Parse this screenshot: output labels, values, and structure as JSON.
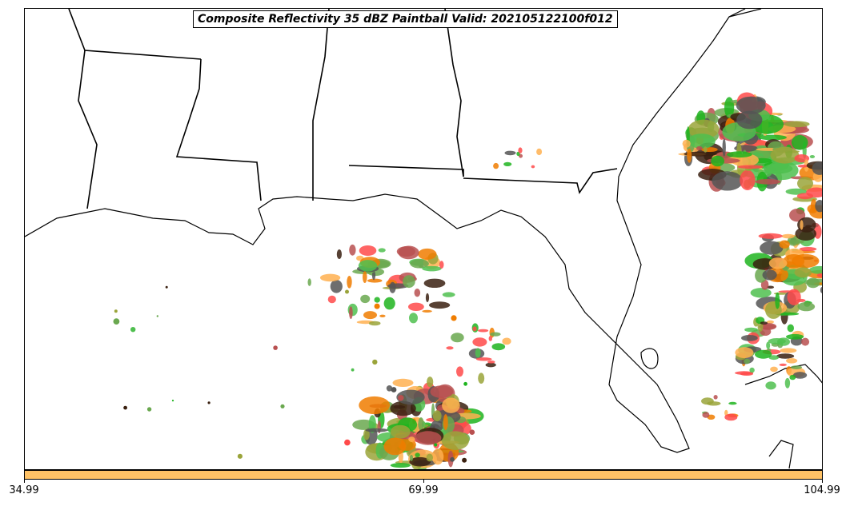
{
  "title": "Composite Reflectivity 35 dBZ Paintball Valid: 202105122100f012",
  "colorbar": {
    "color": "#ffc266",
    "ticks": [
      "34.99",
      "69.99",
      "104.99"
    ]
  },
  "colors": {
    "border": "#000000",
    "paintball": [
      "#b85050",
      "#ff4a4a",
      "#f07d00",
      "#ffb050",
      "#9aa43a",
      "#4fbf4f",
      "#1eb41e",
      "#555555",
      "#3a2010",
      "#6aa84f"
    ]
  }
}
